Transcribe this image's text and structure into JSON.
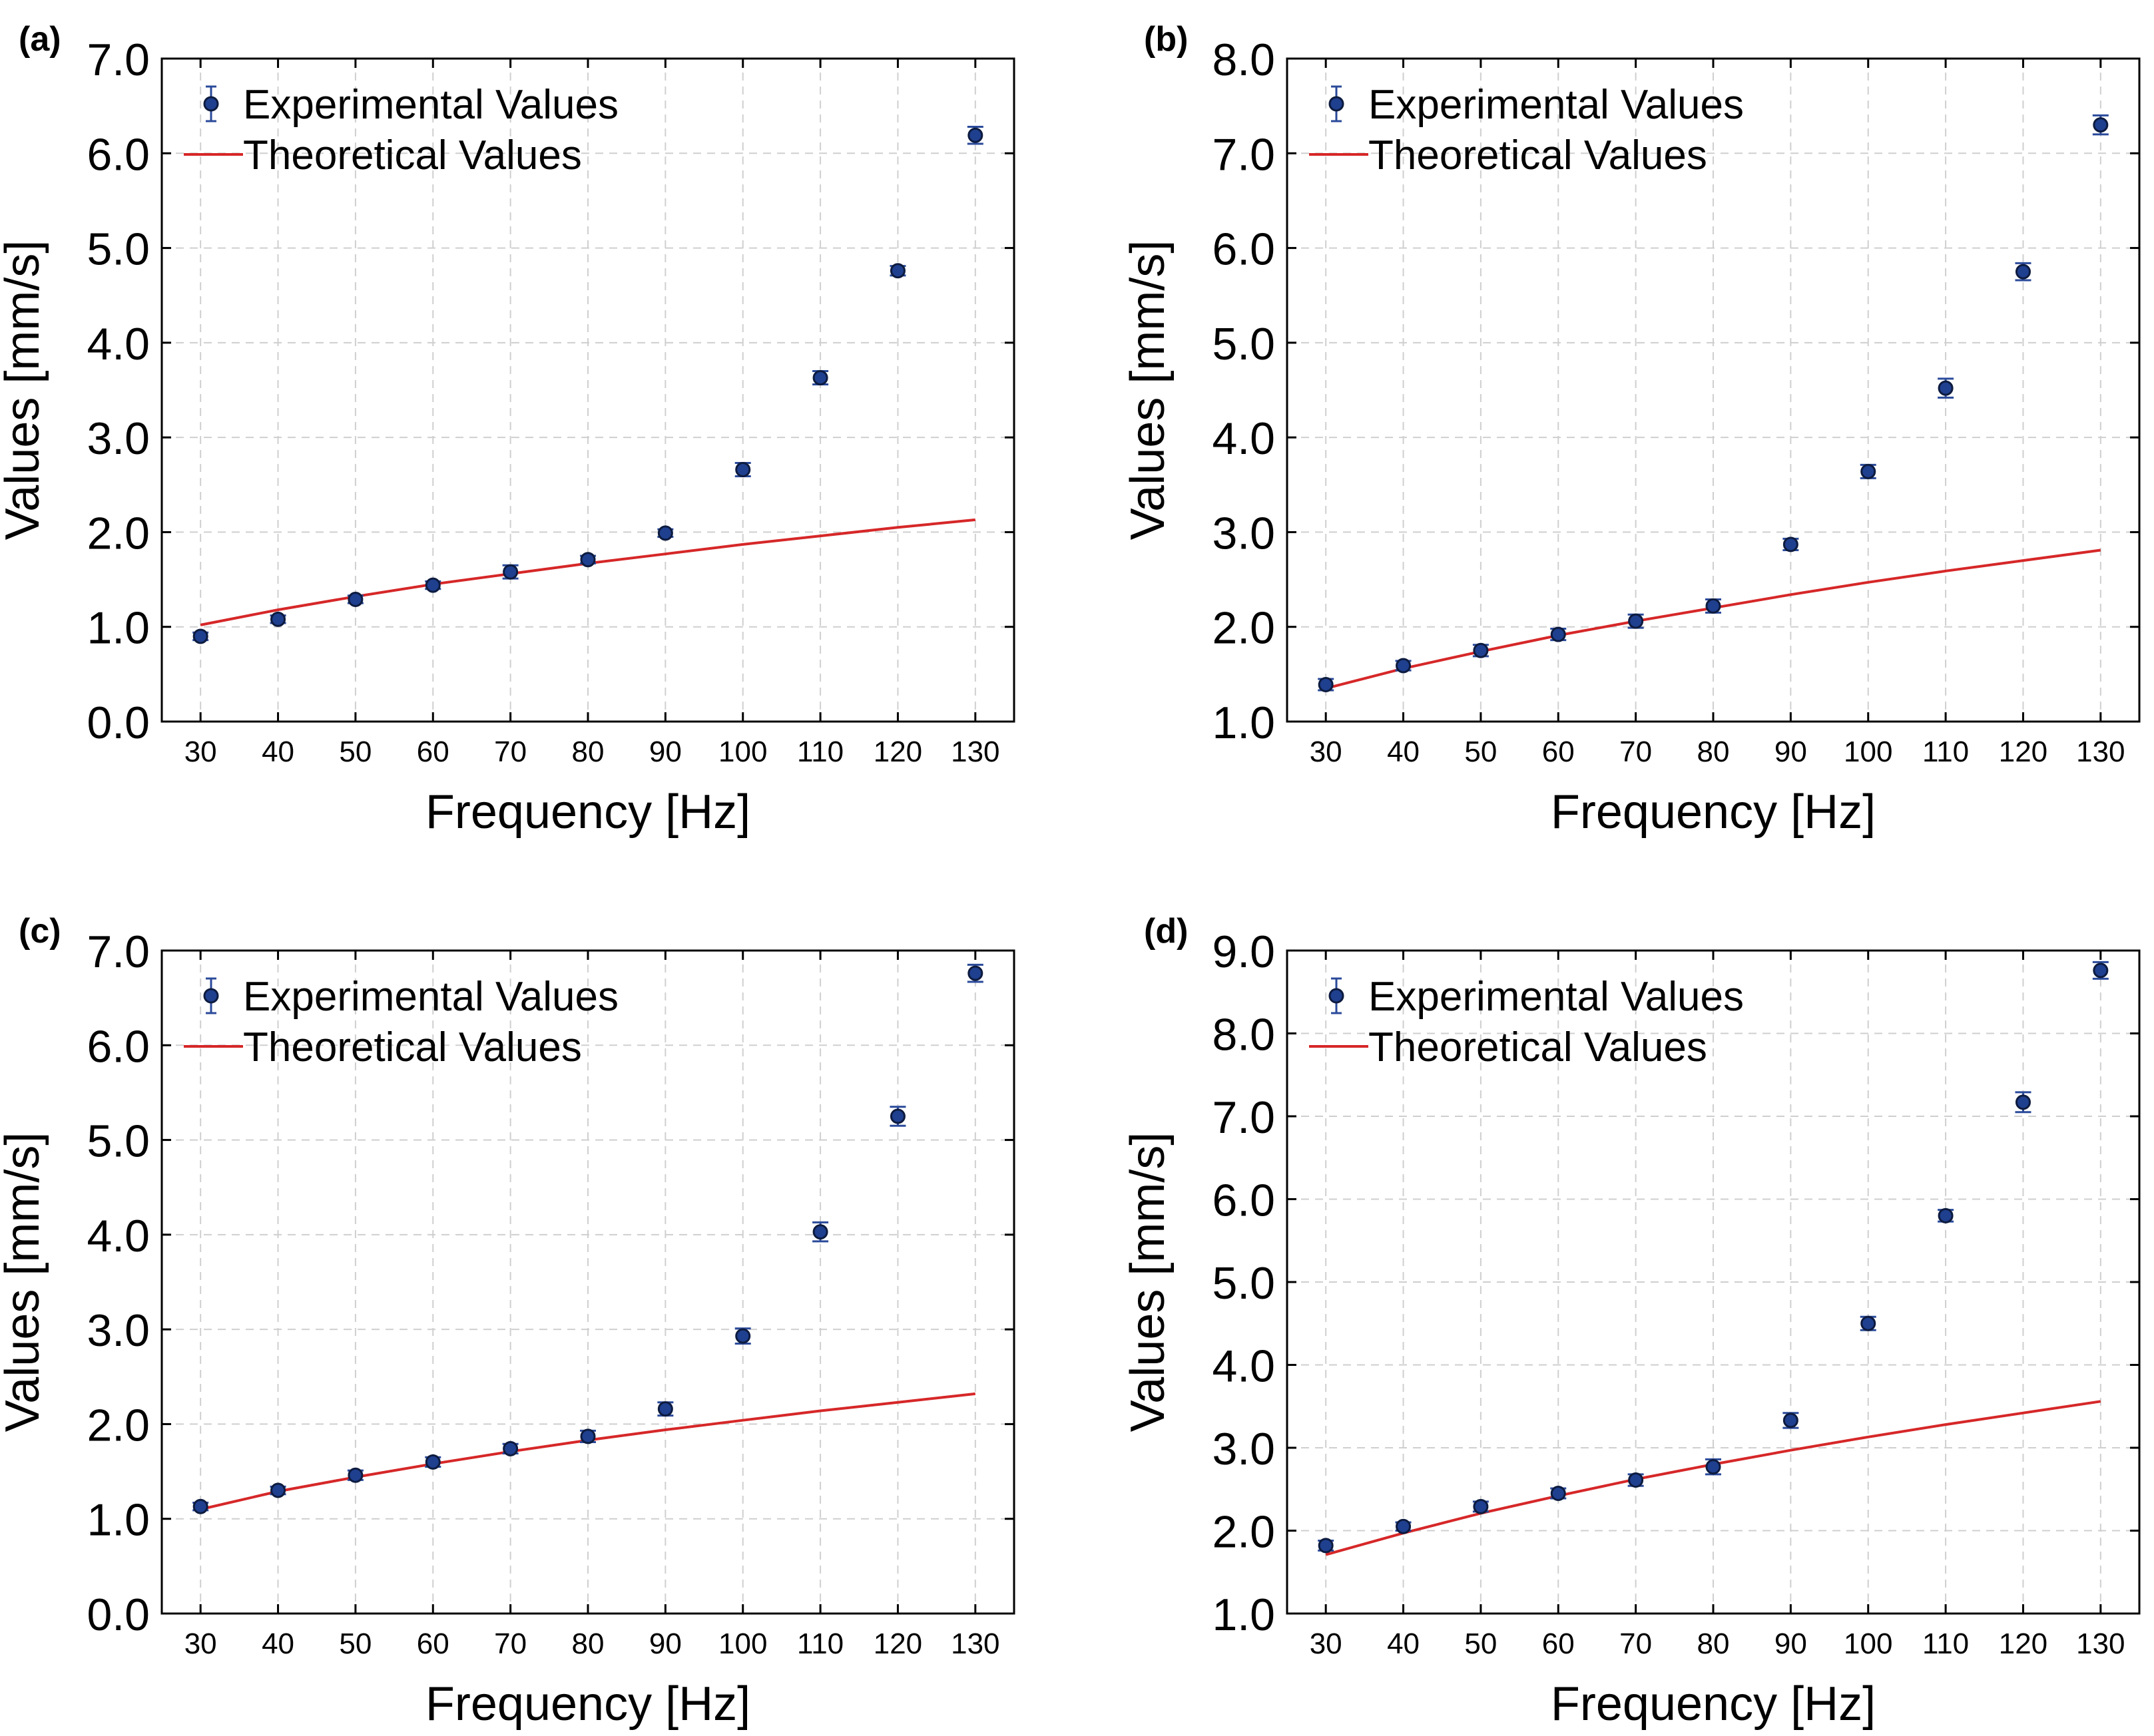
{
  "colors": {
    "marker_fill": "#1f3f8f",
    "marker_edge": "#0d1b3e",
    "errorbar": "#2a4a9a",
    "theory_line": "#d62728",
    "grid": "#cfcfcf",
    "axes": "#000000"
  },
  "chart_data": [
    {
      "type": "scatter",
      "panel_label": "(a)",
      "xlabel": "Frequency [Hz]",
      "ylabel": "Values [mm/s]",
      "xlim": [
        25,
        135
      ],
      "ylim": [
        0.0,
        7.0
      ],
      "x_ticks": [
        "30",
        "40",
        "50",
        "60",
        "70",
        "80",
        "90",
        "100",
        "110",
        "120",
        "130"
      ],
      "y_ticks": [
        "0.0",
        "1.0",
        "2.0",
        "3.0",
        "4.0",
        "5.0",
        "6.0",
        "7.0"
      ],
      "grid": true,
      "legend_position": "top-left",
      "series": [
        {
          "name": "Experimental Values",
          "kind": "errorbar",
          "x": [
            30,
            40,
            50,
            60,
            70,
            80,
            90,
            100,
            110,
            120,
            130
          ],
          "y": [
            0.9,
            1.08,
            1.29,
            1.44,
            1.58,
            1.71,
            1.99,
            2.66,
            3.63,
            4.76,
            6.19
          ],
          "yerr": [
            0.04,
            0.04,
            0.04,
            0.04,
            0.07,
            0.04,
            0.04,
            0.07,
            0.07,
            0.05,
            0.09
          ]
        },
        {
          "name": "Theoretical Values",
          "kind": "line",
          "x": [
            30,
            40,
            50,
            60,
            70,
            80,
            90,
            100,
            110,
            120,
            130
          ],
          "y": [
            1.02,
            1.18,
            1.32,
            1.45,
            1.56,
            1.67,
            1.77,
            1.87,
            1.96,
            2.05,
            2.13
          ]
        }
      ]
    },
    {
      "type": "scatter",
      "panel_label": "(b)",
      "xlabel": "Frequency [Hz]",
      "ylabel": "Values [mm/s]",
      "xlim": [
        25,
        135
      ],
      "ylim": [
        1.0,
        8.0
      ],
      "x_ticks": [
        "30",
        "40",
        "50",
        "60",
        "70",
        "80",
        "90",
        "100",
        "110",
        "120",
        "130"
      ],
      "y_ticks": [
        "1.0",
        "2.0",
        "3.0",
        "4.0",
        "5.0",
        "6.0",
        "7.0",
        "8.0"
      ],
      "grid": true,
      "legend_position": "top-left",
      "series": [
        {
          "name": "Experimental Values",
          "kind": "errorbar",
          "x": [
            30,
            40,
            50,
            60,
            70,
            80,
            90,
            100,
            110,
            120,
            130
          ],
          "y": [
            1.39,
            1.59,
            1.75,
            1.92,
            2.06,
            2.22,
            2.87,
            3.64,
            4.52,
            5.75,
            7.3
          ],
          "yerr": [
            0.06,
            0.05,
            0.06,
            0.06,
            0.07,
            0.07,
            0.06,
            0.07,
            0.1,
            0.09,
            0.1
          ]
        },
        {
          "name": "Theoretical Values",
          "kind": "line",
          "x": [
            30,
            40,
            50,
            60,
            70,
            80,
            90,
            100,
            110,
            120,
            130
          ],
          "y": [
            1.35,
            1.56,
            1.74,
            1.91,
            2.06,
            2.2,
            2.34,
            2.47,
            2.59,
            2.7,
            2.81
          ]
        }
      ]
    },
    {
      "type": "scatter",
      "panel_label": "(c)",
      "xlabel": "Frequency [Hz]",
      "ylabel": "Values [mm/s]",
      "xlim": [
        25,
        135
      ],
      "ylim": [
        0.0,
        7.0
      ],
      "x_ticks": [
        "30",
        "40",
        "50",
        "60",
        "70",
        "80",
        "90",
        "100",
        "110",
        "120",
        "130"
      ],
      "y_ticks": [
        "0.0",
        "1.0",
        "2.0",
        "3.0",
        "4.0",
        "5.0",
        "6.0",
        "7.0"
      ],
      "grid": true,
      "legend_position": "top-left",
      "series": [
        {
          "name": "Experimental Values",
          "kind": "errorbar",
          "x": [
            30,
            40,
            50,
            60,
            70,
            80,
            90,
            100,
            110,
            120,
            130
          ],
          "y": [
            1.13,
            1.3,
            1.46,
            1.6,
            1.74,
            1.87,
            2.16,
            2.93,
            4.03,
            5.25,
            6.76
          ],
          "yerr": [
            0.04,
            0.04,
            0.05,
            0.05,
            0.05,
            0.06,
            0.07,
            0.08,
            0.1,
            0.1,
            0.09
          ]
        },
        {
          "name": "Theoretical Values",
          "kind": "line",
          "x": [
            30,
            40,
            50,
            60,
            70,
            80,
            90,
            100,
            110,
            120,
            130
          ],
          "y": [
            1.1,
            1.29,
            1.44,
            1.58,
            1.71,
            1.83,
            1.94,
            2.04,
            2.14,
            2.23,
            2.32
          ]
        }
      ]
    },
    {
      "type": "scatter",
      "panel_label": "(d)",
      "xlabel": "Frequency [Hz]",
      "ylabel": "Values [mm/s]",
      "xlim": [
        25,
        135
      ],
      "ylim": [
        1.0,
        9.0
      ],
      "x_ticks": [
        "30",
        "40",
        "50",
        "60",
        "70",
        "80",
        "90",
        "100",
        "110",
        "120",
        "130"
      ],
      "y_ticks": [
        "1.0",
        "2.0",
        "3.0",
        "4.0",
        "5.0",
        "6.0",
        "7.0",
        "8.0",
        "9.0"
      ],
      "grid": true,
      "legend_position": "top-left",
      "series": [
        {
          "name": "Experimental Values",
          "kind": "errorbar",
          "x": [
            30,
            40,
            50,
            60,
            70,
            80,
            90,
            100,
            110,
            120,
            130
          ],
          "y": [
            1.82,
            2.05,
            2.29,
            2.45,
            2.61,
            2.77,
            3.33,
            4.5,
            5.8,
            7.17,
            8.76
          ],
          "yerr": [
            0.06,
            0.05,
            0.06,
            0.06,
            0.07,
            0.09,
            0.09,
            0.08,
            0.07,
            0.12,
            0.1
          ]
        },
        {
          "name": "Theoretical Values",
          "kind": "line",
          "x": [
            30,
            40,
            50,
            60,
            70,
            80,
            90,
            100,
            110,
            120,
            130
          ],
          "y": [
            1.71,
            1.97,
            2.21,
            2.42,
            2.62,
            2.8,
            2.97,
            3.13,
            3.28,
            3.42,
            3.56
          ]
        }
      ]
    }
  ]
}
